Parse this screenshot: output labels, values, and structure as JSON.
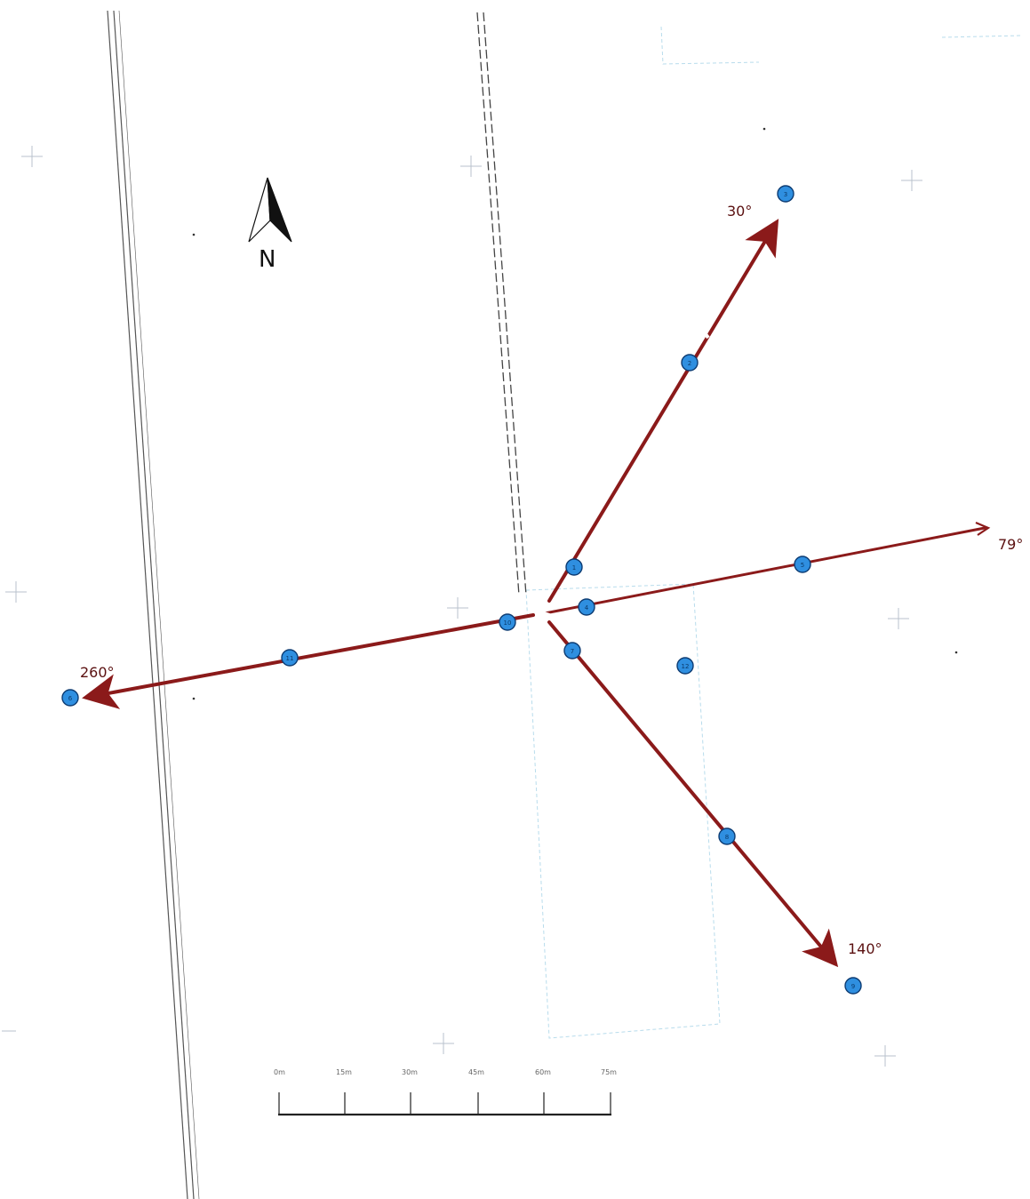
{
  "map": {
    "north_arrow_label": "N",
    "colors": {
      "arrow": "#8b1a1a",
      "point_fill": "#2f8fe0",
      "point_stroke": "#0d3c73",
      "road": "#555555",
      "parcel": "#b8dcec",
      "grid_cross": "#b9c2cc"
    },
    "bearings": [
      {
        "id": "bearing-30",
        "label": "30°"
      },
      {
        "id": "bearing-79",
        "label": "79°"
      },
      {
        "id": "bearing-140",
        "label": "140°"
      },
      {
        "id": "bearing-260",
        "label": "260°"
      }
    ],
    "points": [
      {
        "id": "1",
        "label": "1"
      },
      {
        "id": "2",
        "label": "2"
      },
      {
        "id": "3",
        "label": "3"
      },
      {
        "id": "4",
        "label": "4"
      },
      {
        "id": "5",
        "label": "5"
      },
      {
        "id": "6",
        "label": "6"
      },
      {
        "id": "7",
        "label": "7"
      },
      {
        "id": "8",
        "label": "8"
      },
      {
        "id": "9",
        "label": "9"
      },
      {
        "id": "10",
        "label": "10"
      },
      {
        "id": "11",
        "label": "11"
      },
      {
        "id": "12",
        "label": "12"
      }
    ],
    "scale_bar": {
      "ticks": [
        "0m",
        "15m",
        "30m",
        "45m",
        "60m",
        "75m"
      ]
    }
  }
}
